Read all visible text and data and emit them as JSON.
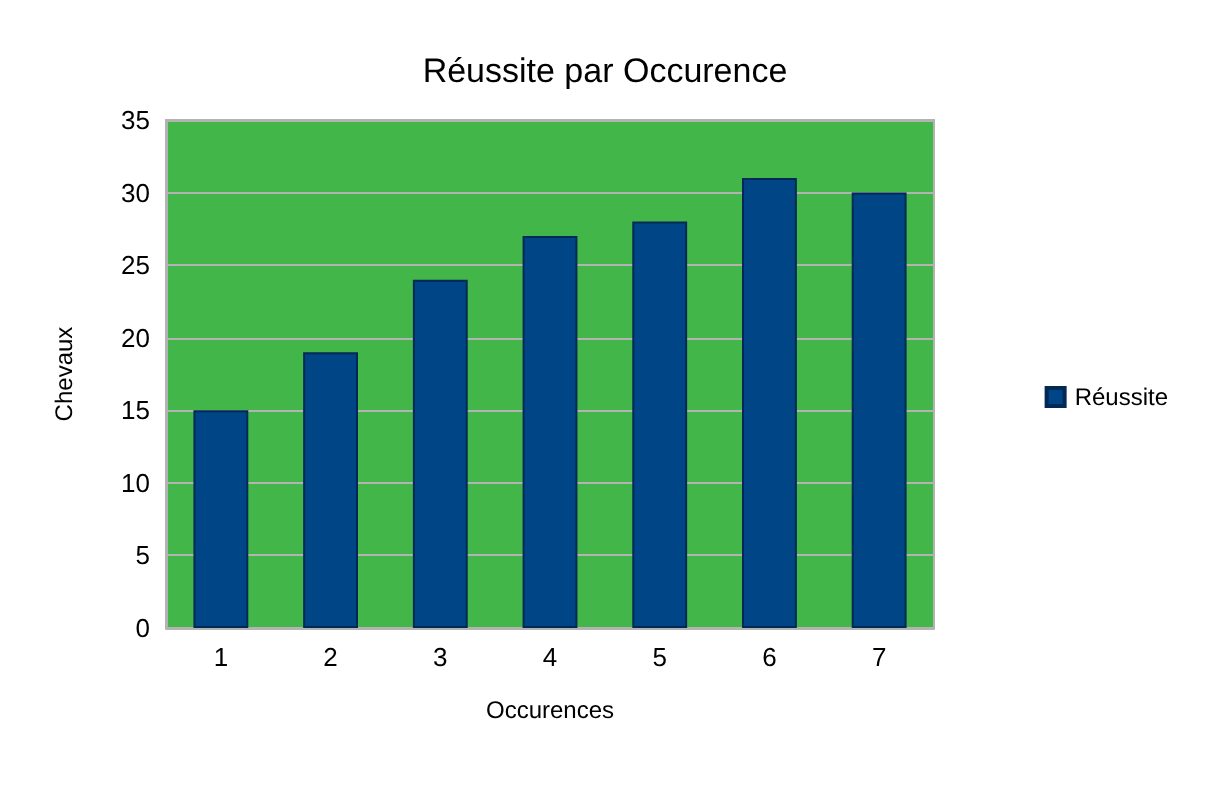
{
  "chart_data": {
    "type": "bar",
    "title": "Réussite par Occurence",
    "xlabel": "Occurences",
    "ylabel": "Chevaux",
    "categories": [
      "1",
      "2",
      "3",
      "4",
      "5",
      "6",
      "7"
    ],
    "series": [
      {
        "name": "Réussite",
        "color": "#004586",
        "values": [
          15,
          19,
          24,
          27,
          28,
          31,
          30
        ]
      }
    ],
    "ylim": [
      0,
      35
    ],
    "yticks": [
      0,
      5,
      10,
      15,
      20,
      25,
      30,
      35
    ],
    "grid": "y",
    "legend": "right"
  }
}
